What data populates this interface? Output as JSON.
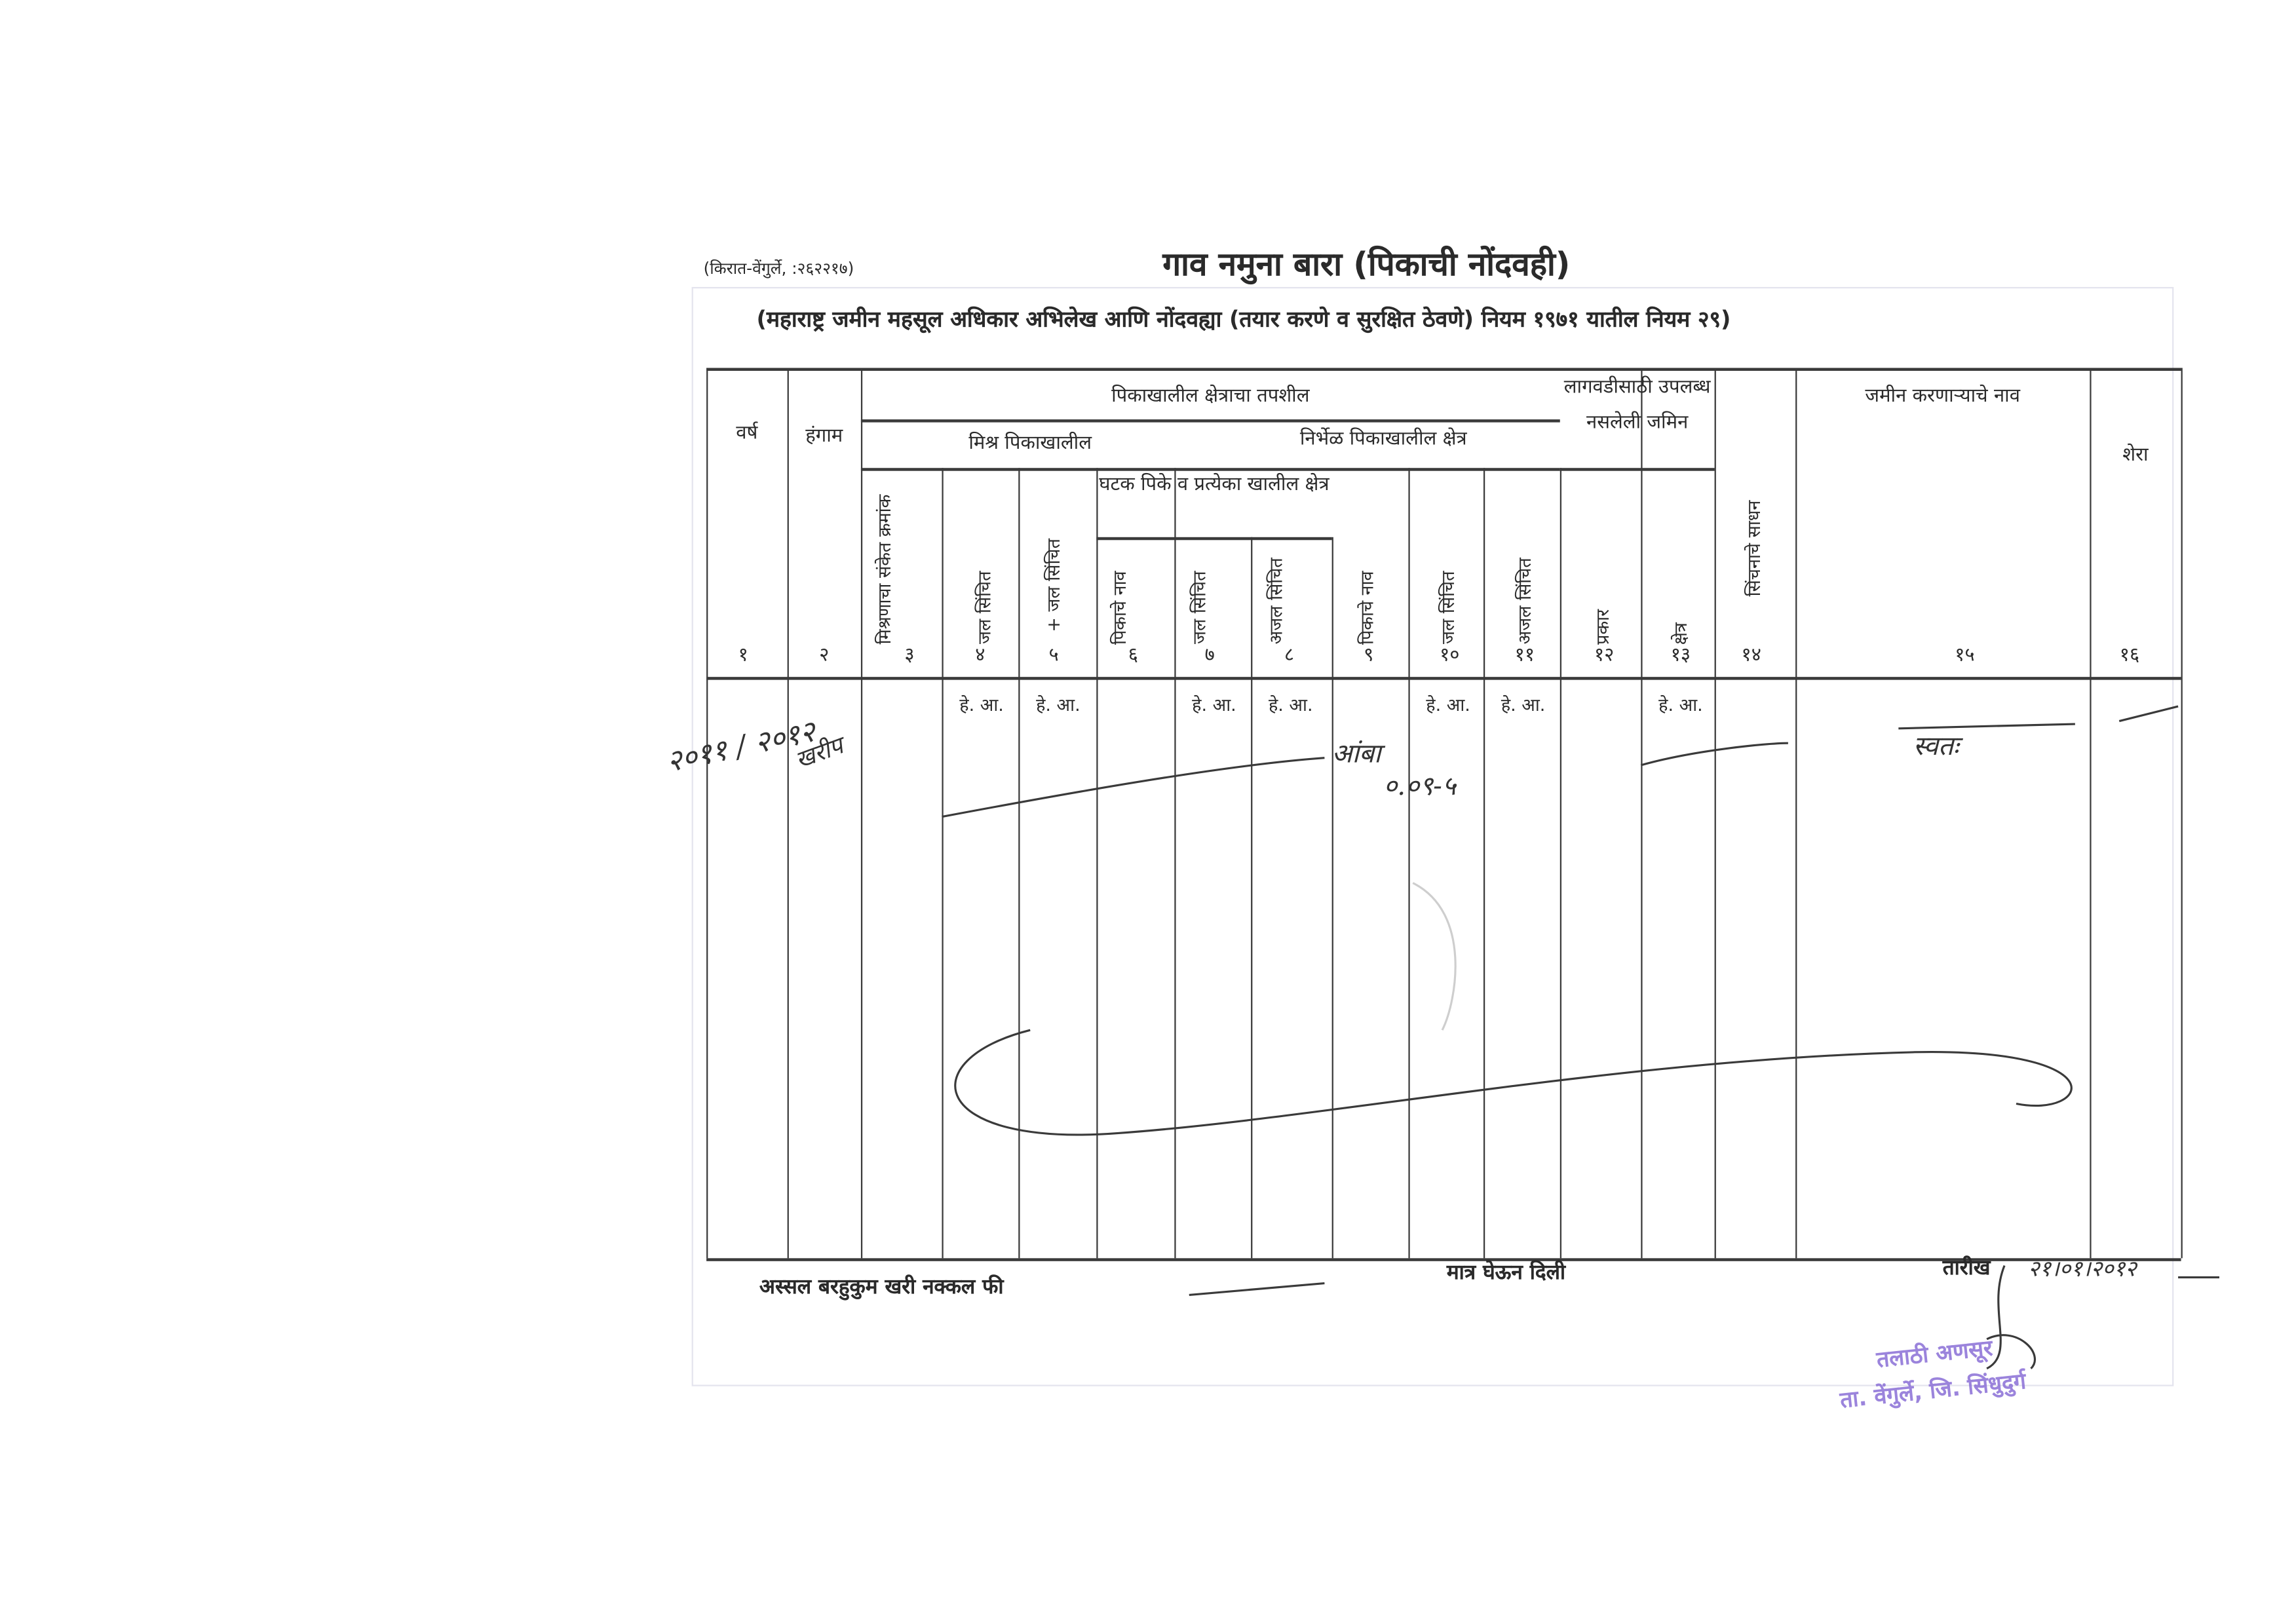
{
  "form": {
    "printer": "(किरात-वेंगुर्ले, :२६२२१७)",
    "title": "गाव नमुना बारा (पिकाची नोंदवही)",
    "subtitle": "(महाराष्ट्र जमीन महसूल अधिकार अभिलेख आणि नोंदवह्या (तयार करणे व सुरक्षित ठेवणे) नियम १९७१ यातील नियम २९)"
  },
  "table": {
    "headers": {
      "year": "वर्ष",
      "season": "हंगाम",
      "crop_area_details": "पिकाखालील क्षेत्राचा तपशील",
      "mixed_crop": "मिश्र पिकाखालील",
      "pure_crop": "निर्भेळ पिकाखालील क्षेत्र",
      "component_crops": "घटक पिके व प्रत्येका खालील क्षेत्र",
      "uncultivable": "लागवडीसाठी उपलब्ध नसलेली जमिन",
      "irrigation_source": "सिंचनाचे साधन",
      "cultivator_name": "जमीन करणाऱ्याचे नाव",
      "remarks": "शेरा",
      "mix_code": "मिश्रणाचा संकेत क्रमांक",
      "irrigated_4": "जल सिंचित",
      "unirrigated_5": "+ जल सिंचित",
      "crop_name_6": "पिकाचे नाव",
      "irrigated_7": "जल सिंचित",
      "unirrigated_8": "अजल सिंचित",
      "crop_name_9": "पिकाचे नाव",
      "irrigated_10": "जल सिंचित",
      "unirrigated_11": "अजल सिंचित",
      "type_12": "प्रकार",
      "area_13": "क्षेत्र"
    },
    "column_numbers": [
      "१",
      "२",
      "३",
      "४",
      "५",
      "६",
      "७",
      "८",
      "९",
      "१०",
      "११",
      "१२",
      "१३",
      "१४",
      "१५",
      "१६"
    ],
    "unit": "हे. आ.",
    "entries": {
      "year": "२०११ / २०१२",
      "season": "खरीप",
      "crop": "आंबा",
      "area": "०.०९-५",
      "cultivator": "स्वतः"
    }
  },
  "footer": {
    "certified_copy_fee": "अस्सल बरहुकुम खरी नक्कल फी",
    "received": "मात्र घेऊन दिली",
    "date_label": "तारीख",
    "date_value": "२१।०१।२०१२"
  },
  "stamp": {
    "line1": "तलाठी अणसूर",
    "line2": "ता. वेंगुर्ले, जि. सिंधुदुर्ग"
  }
}
